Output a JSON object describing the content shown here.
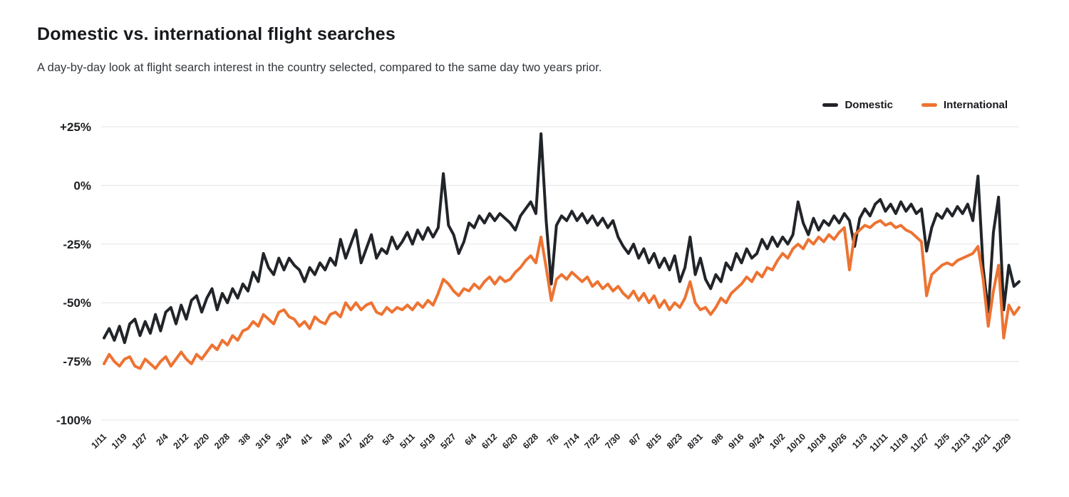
{
  "header": {
    "title": "Domestic vs. international flight searches",
    "subtitle": "A day-by-day look at flight search interest in the country selected, compared to the same day two years prior."
  },
  "chart_data": {
    "type": "line",
    "title": "Domestic vs. international flight searches",
    "ylabel": "",
    "xlabel": "",
    "ylim": [
      -100,
      25
    ],
    "grid": "horizontal",
    "grid_color": "#e4e5e9",
    "legend_position": "top-right",
    "x_unit": "days",
    "x_start_label": "1/11",
    "sample_interval_days": 2,
    "x_tick_interval_days": 8,
    "x_tick_labels": [
      "1/11",
      "1/19",
      "1/27",
      "2/4",
      "2/12",
      "2/20",
      "2/28",
      "3/8",
      "3/16",
      "3/24",
      "4/1",
      "4/9",
      "4/17",
      "4/25",
      "5/3",
      "5/11",
      "5/19",
      "5/27",
      "6/4",
      "6/12",
      "6/20",
      "6/28",
      "7/6",
      "7/14",
      "7/22",
      "7/30",
      "8/7",
      "8/15",
      "8/23",
      "8/31",
      "9/8",
      "9/16",
      "9/24",
      "10/2",
      "10/10",
      "10/18",
      "10/26",
      "11/3",
      "11/11",
      "11/19",
      "11/27",
      "12/5",
      "12/13",
      "12/21",
      "12/29"
    ],
    "y_ticks": [
      {
        "value": 25,
        "label": "+25%"
      },
      {
        "value": 0,
        "label": "0%"
      },
      {
        "value": -25,
        "label": "-25%"
      },
      {
        "value": -50,
        "label": "-50%"
      },
      {
        "value": -75,
        "label": "-75%"
      },
      {
        "value": -100,
        "label": "-100%"
      }
    ],
    "series": [
      {
        "name": "Domestic",
        "color": "#212428",
        "values": [
          -65,
          -61,
          -66,
          -60,
          -67,
          -59,
          -57,
          -64,
          -58,
          -63,
          -55,
          -62,
          -54,
          -52,
          -59,
          -51,
          -57,
          -49,
          -47,
          -54,
          -48,
          -44,
          -53,
          -46,
          -50,
          -44,
          -48,
          -42,
          -45,
          -37,
          -41,
          -29,
          -35,
          -38,
          -31,
          -36,
          -31,
          -34,
          -36,
          -41,
          -35,
          -38,
          -33,
          -36,
          -31,
          -34,
          -23,
          -31,
          -25,
          -19,
          -33,
          -27,
          -21,
          -31,
          -27,
          -29,
          -22,
          -27,
          -24,
          -20,
          -25,
          -19,
          -23,
          -18,
          -22,
          -18,
          5,
          -17,
          -21,
          -29,
          -24,
          -16,
          -18,
          -13,
          -16,
          -12,
          -15,
          -12,
          -14,
          -16,
          -19,
          -13,
          -10,
          -7,
          -12,
          22,
          -15,
          -42,
          -17,
          -13,
          -15,
          -11,
          -15,
          -12,
          -16,
          -13,
          -17,
          -14,
          -18,
          -15,
          -22,
          -26,
          -29,
          -25,
          -31,
          -27,
          -33,
          -29,
          -35,
          -31,
          -36,
          -30,
          -41,
          -35,
          -22,
          -38,
          -31,
          -40,
          -44,
          -38,
          -41,
          -33,
          -36,
          -29,
          -33,
          -27,
          -31,
          -29,
          -23,
          -27,
          -22,
          -26,
          -22,
          -25,
          -21,
          -7,
          -16,
          -21,
          -14,
          -19,
          -15,
          -17,
          -13,
          -16,
          -12,
          -15,
          -26,
          -14,
          -10,
          -13,
          -8,
          -6,
          -11,
          -8,
          -12,
          -7,
          -11,
          -8,
          -12,
          -10,
          -28,
          -18,
          -12,
          -14,
          -10,
          -13,
          -9,
          -12,
          -8,
          -15,
          4,
          -35,
          -54,
          -20,
          -5,
          -53,
          -34,
          -43,
          -41
        ]
      },
      {
        "name": "International",
        "color": "#ED7332",
        "values": [
          -76,
          -72,
          -75,
          -77,
          -74,
          -73,
          -77,
          -78,
          -74,
          -76,
          -78,
          -75,
          -73,
          -77,
          -74,
          -71,
          -74,
          -76,
          -72,
          -74,
          -71,
          -68,
          -70,
          -66,
          -68,
          -64,
          -66,
          -62,
          -61,
          -58,
          -60,
          -55,
          -57,
          -59,
          -54,
          -53,
          -56,
          -57,
          -60,
          -58,
          -61,
          -56,
          -58,
          -59,
          -55,
          -54,
          -56,
          -50,
          -53,
          -50,
          -53,
          -51,
          -50,
          -54,
          -55,
          -52,
          -54,
          -52,
          -53,
          -51,
          -53,
          -50,
          -52,
          -49,
          -51,
          -46,
          -40,
          -42,
          -45,
          -47,
          -44,
          -45,
          -42,
          -44,
          -41,
          -39,
          -42,
          -39,
          -41,
          -40,
          -37,
          -35,
          -32,
          -30,
          -33,
          -22,
          -35,
          -49,
          -40,
          -38,
          -40,
          -37,
          -39,
          -41,
          -39,
          -43,
          -41,
          -44,
          -42,
          -45,
          -43,
          -46,
          -48,
          -45,
          -49,
          -46,
          -50,
          -47,
          -52,
          -49,
          -53,
          -50,
          -52,
          -48,
          -41,
          -50,
          -53,
          -52,
          -55,
          -52,
          -48,
          -50,
          -46,
          -44,
          -42,
          -39,
          -41,
          -37,
          -39,
          -35,
          -36,
          -32,
          -29,
          -31,
          -27,
          -25,
          -27,
          -23,
          -25,
          -22,
          -24,
          -21,
          -23,
          -20,
          -18,
          -36,
          -21,
          -19,
          -17,
          -18,
          -16,
          -15,
          -17,
          -16,
          -18,
          -17,
          -19,
          -20,
          -22,
          -24,
          -47,
          -38,
          -36,
          -34,
          -33,
          -34,
          -32,
          -31,
          -30,
          -29,
          -26,
          -40,
          -60,
          -45,
          -34,
          -65,
          -51,
          -55,
          -52
        ]
      }
    ]
  }
}
